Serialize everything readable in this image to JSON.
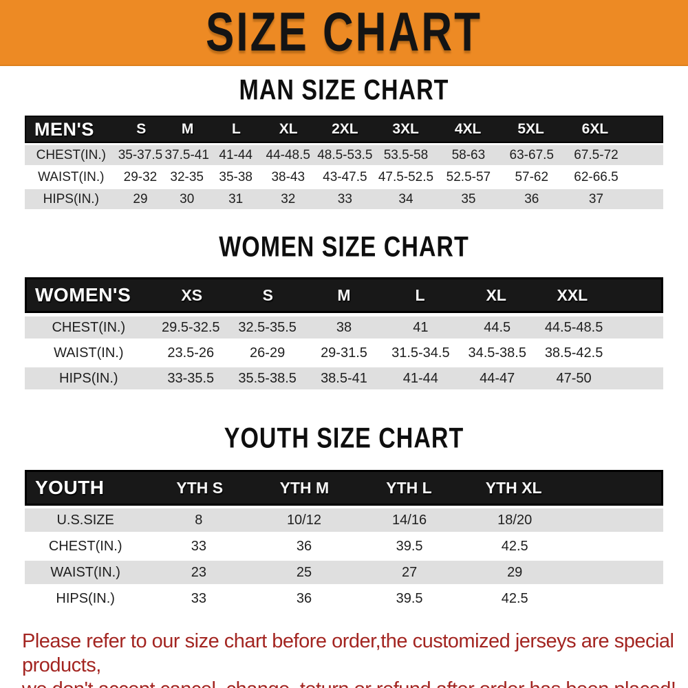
{
  "banner": {
    "title": "SIZE CHART",
    "bg_color": "#ED8A24",
    "text_color": "#141414"
  },
  "colors": {
    "header_bar": "#181818",
    "row_stripe": "#dfdfdf",
    "note_red": "#a32521"
  },
  "tables": {
    "men": {
      "section_title": "MAN SIZE CHART",
      "header": {
        "label": "MEN'S",
        "sizes": [
          "S",
          "M",
          "L",
          "XL",
          "2XL",
          "3XL",
          "4XL",
          "5XL",
          "6XL"
        ]
      },
      "rows": [
        {
          "label": "CHEST(IN.)",
          "values": [
            "35-37.5",
            "37.5-41",
            "41-44",
            "44-48.5",
            "48.5-53.5",
            "53.5-58",
            "58-63",
            "63-67.5",
            "67.5-72"
          ]
        },
        {
          "label": "WAIST(IN.)",
          "values": [
            "29-32",
            "32-35",
            "35-38",
            "38-43",
            "43-47.5",
            "47.5-52.5",
            "52.5-57",
            "57-62",
            "62-66.5"
          ]
        },
        {
          "label": "HIPS(IN.)",
          "values": [
            "29",
            "30",
            "31",
            "32",
            "33",
            "34",
            "35",
            "36",
            "37"
          ]
        }
      ]
    },
    "women": {
      "section_title": "WOMEN SIZE CHART",
      "header": {
        "label": "WOMEN'S",
        "sizes": [
          "XS",
          "S",
          "M",
          "L",
          "XL",
          "XXL"
        ]
      },
      "rows": [
        {
          "label": "CHEST(IN.)",
          "values": [
            "29.5-32.5",
            "32.5-35.5",
            "38",
            "41",
            "44.5",
            "44.5-48.5"
          ]
        },
        {
          "label": "WAIST(IN.)",
          "values": [
            "23.5-26",
            "26-29",
            "29-31.5",
            "31.5-34.5",
            "34.5-38.5",
            "38.5-42.5"
          ]
        },
        {
          "label": "HIPS(IN.)",
          "values": [
            "33-35.5",
            "35.5-38.5",
            "38.5-41",
            "41-44",
            "44-47",
            "47-50"
          ]
        }
      ]
    },
    "youth": {
      "section_title": "YOUTH SIZE CHART",
      "header": {
        "label": "YOUTH",
        "sizes": [
          "YTH S",
          "YTH M",
          "YTH L",
          "YTH XL"
        ]
      },
      "rows": [
        {
          "label": "U.S.SIZE",
          "values": [
            "8",
            "10/12",
            "14/16",
            "18/20"
          ]
        },
        {
          "label": "CHEST(IN.)",
          "values": [
            "33",
            "36",
            "39.5",
            "42.5"
          ]
        },
        {
          "label": "WAIST(IN.)",
          "values": [
            "23",
            "25",
            "27",
            "29"
          ]
        },
        {
          "label": "HIPS(IN.)",
          "values": [
            "33",
            "36",
            "39.5",
            "42.5"
          ]
        }
      ]
    }
  },
  "footer": {
    "line1": "Please refer to our size chart before order,the customized jerseys are special products,",
    "line2": "we don't accept cancel, change, teturn or refund after order has been placed!"
  }
}
